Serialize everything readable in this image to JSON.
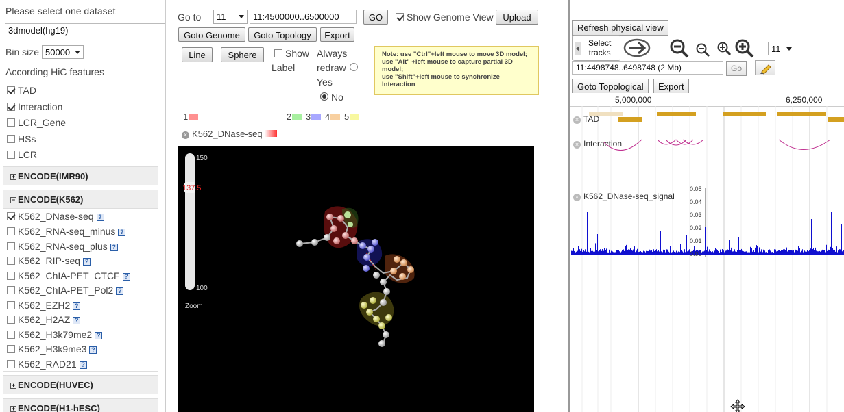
{
  "left": {
    "select_dataset_label": "Please select one dataset",
    "dataset_value": "3dmodel(hg19)",
    "bin_size_label": "Bin size",
    "bin_size_value": "50000",
    "hic_features_label": "According HiC features",
    "features": [
      {
        "label": "TAD",
        "checked": true
      },
      {
        "label": "Interaction",
        "checked": true
      },
      {
        "label": "LCR_Gene",
        "checked": false
      },
      {
        "label": "HSs",
        "checked": false
      },
      {
        "label": "LCR",
        "checked": false
      }
    ],
    "sections": [
      "ENCODE(IMR90)",
      "ENCODE(K562)",
      "ENCODE(HUVEC)",
      "ENCODE(H1-hESC)"
    ],
    "k562_tracks": [
      {
        "label": "K562_DNase-seq",
        "checked": true
      },
      {
        "label": "K562_RNA-seq_minus",
        "checked": false
      },
      {
        "label": "K562_RNA-seq_plus",
        "checked": false
      },
      {
        "label": "K562_RIP-seq",
        "checked": false
      },
      {
        "label": "K562_ChIA-PET_CTCF",
        "checked": false
      },
      {
        "label": "K562_ChIA-PET_Pol2",
        "checked": false
      },
      {
        "label": "K562_EZH2",
        "checked": false
      },
      {
        "label": "K562_H2AZ",
        "checked": false
      },
      {
        "label": "K562_H3k79me2",
        "checked": false
      },
      {
        "label": "K562_H3k9me3",
        "checked": false
      },
      {
        "label": "K562_RAD21",
        "checked": false
      }
    ],
    "help_glyph": "?"
  },
  "middle": {
    "goto_label": "Go to",
    "chrom_value": "11",
    "region_value": "11:4500000..6500000",
    "go_button": "GO",
    "show_genome_view": "Show Genome View",
    "upload_button": "Upload",
    "goto_genome_button": "Goto Genome",
    "goto_topology_button": "Goto Topology",
    "export_button": "Export",
    "line_button": "Line",
    "sphere_button": "Sphere",
    "show_label_1": "Show",
    "show_label_2": "Label",
    "always_redraw_1": "Always",
    "always_redraw_2": "redraw",
    "yes_label": "Yes",
    "no_label": "No",
    "note_text": "Note: use \"Ctrl\"+left mouse to move 3D model;  use \"Alt\" +left mouse to capture partial 3D model;\nuse \"Shift\"+left mouse to synchronize Interaction",
    "legend": [
      {
        "label": "1",
        "color": "#ff9090"
      },
      {
        "label": "2",
        "color": "#a8f0a0"
      },
      {
        "label": "3",
        "color": "#a8a8ff"
      },
      {
        "label": "4",
        "color": "#f8d0a0"
      },
      {
        "label": "5",
        "color": "#f8f8a0"
      }
    ],
    "track_legend_label": "K562_DNase-seq",
    "slider_max": "150",
    "slider_value": "137.5",
    "slider_min": "100",
    "zoom_label": "Zoom"
  },
  "right": {
    "refresh_button": "Refresh physical view",
    "select_tracks_1": "Select",
    "select_tracks_2": "tracks",
    "chrom_value": "11",
    "coords_value": "11:4498748..6498748 (2 Mb)",
    "go_button": "Go",
    "goto_topological_button": "Goto Topological",
    "export_button": "Export",
    "ruler_labels": [
      "5,000,000",
      "6,250,000"
    ],
    "tracks": [
      "TAD",
      "Interaction",
      "K562_DNase-seq_signal"
    ],
    "signal_axis": [
      "0.05",
      "0.04",
      "0.03",
      "0.02",
      "0.01",
      "0.00"
    ],
    "colors": {
      "tad": "#d4a020",
      "interaction": "#c03090",
      "signal": "#1010d0"
    }
  }
}
